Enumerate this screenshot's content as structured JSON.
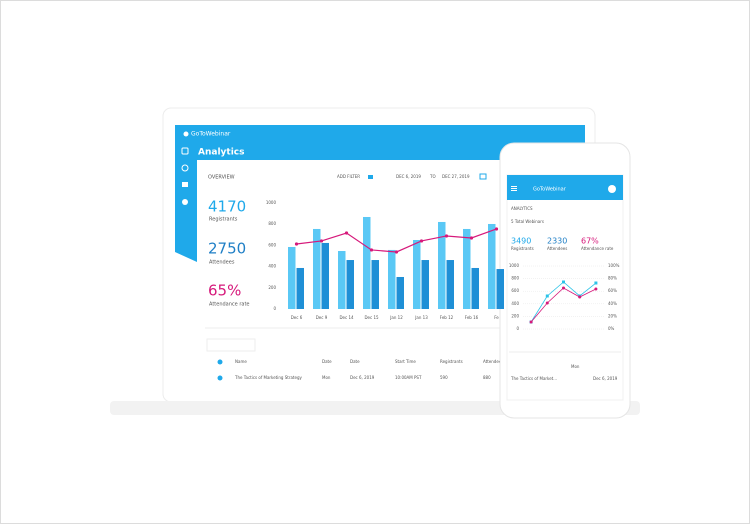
{
  "laptop": {
    "logo": "GoToWebinar",
    "page_title": "Analytics",
    "section": "OVERVIEW",
    "filter": "ADD FILTER",
    "date_from": "DEC 6, 2019",
    "date_to_word": "TO",
    "date_to": "DEC 27, 2019",
    "stats": [
      {
        "value": "4170",
        "label": "Registrants"
      },
      {
        "value": "2750",
        "label": "Attendees"
      },
      {
        "value": "65%",
        "label": "Attendance rate"
      }
    ],
    "table": {
      "header": [
        "Name",
        "Date",
        "Date",
        "Start Time",
        "Registrants",
        "Attendees"
      ],
      "rows": [
        [
          "The Tactics of Marketing Strategy",
          "Mon",
          "Dec 6, 2019",
          "10:00AM PST",
          "590",
          "880"
        ]
      ]
    }
  },
  "phone": {
    "logo": "GoToWebinar",
    "section": "ANALYTICS",
    "subtitle": "5 Total Webinars",
    "stats": [
      {
        "value": "3490",
        "label": "Registrants"
      },
      {
        "value": "2330",
        "label": "Attendees"
      },
      {
        "value": "67%",
        "label": "Attendance rate"
      }
    ],
    "row": [
      "The Tactics of Market...",
      "Mon",
      "Dec 6, 2019"
    ]
  },
  "chart_data": [
    {
      "type": "bar",
      "categories": [
        "Dec 6",
        "Dec 9",
        "Dec 14",
        "Dec 15",
        "Jan 12",
        "Jan 13",
        "Feb 12",
        "Feb 16",
        "Fe"
      ],
      "series": [
        {
          "type": "bar",
          "color": "#5ac8f5",
          "values": [
            585,
            755,
            547,
            868,
            557,
            651,
            821,
            755,
            802
          ]
        },
        {
          "type": "bar",
          "color": "#1f8fd6",
          "values": [
            387,
            623,
            462,
            462,
            302,
            462,
            462,
            387,
            377
          ]
        },
        {
          "type": "line",
          "color": "#d6197b",
          "values": [
            613,
            642,
            717,
            557,
            538,
            642,
            689,
            670,
            755
          ]
        }
      ],
      "ylim": [
        0,
        1000
      ],
      "yticks": [
        0,
        200,
        400,
        600,
        800,
        1000
      ],
      "grid": false
    },
    {
      "type": "line",
      "categories": [
        null,
        null,
        null,
        null,
        null
      ],
      "series": [
        {
          "color": "#2bc3e8",
          "values": [
            111,
            524,
            746,
            524,
            730
          ]
        },
        {
          "color": "#d6197b",
          "values": [
            111,
            413,
            651,
            508,
            635
          ]
        }
      ],
      "ylim": [
        0,
        1000
      ],
      "yticks": [
        0,
        200,
        400,
        600,
        800,
        1000
      ],
      "y2lim": [
        0,
        100
      ],
      "y2ticks": [
        {
          "value": 0,
          "label": "0%"
        },
        {
          "value": 20,
          "label": "20%"
        },
        {
          "value": 40,
          "label": "40%"
        },
        {
          "value": 60,
          "label": "60%"
        },
        {
          "value": 80,
          "label": "80%"
        },
        {
          "value": 100,
          "label": "100%"
        }
      ],
      "grid": true
    }
  ]
}
